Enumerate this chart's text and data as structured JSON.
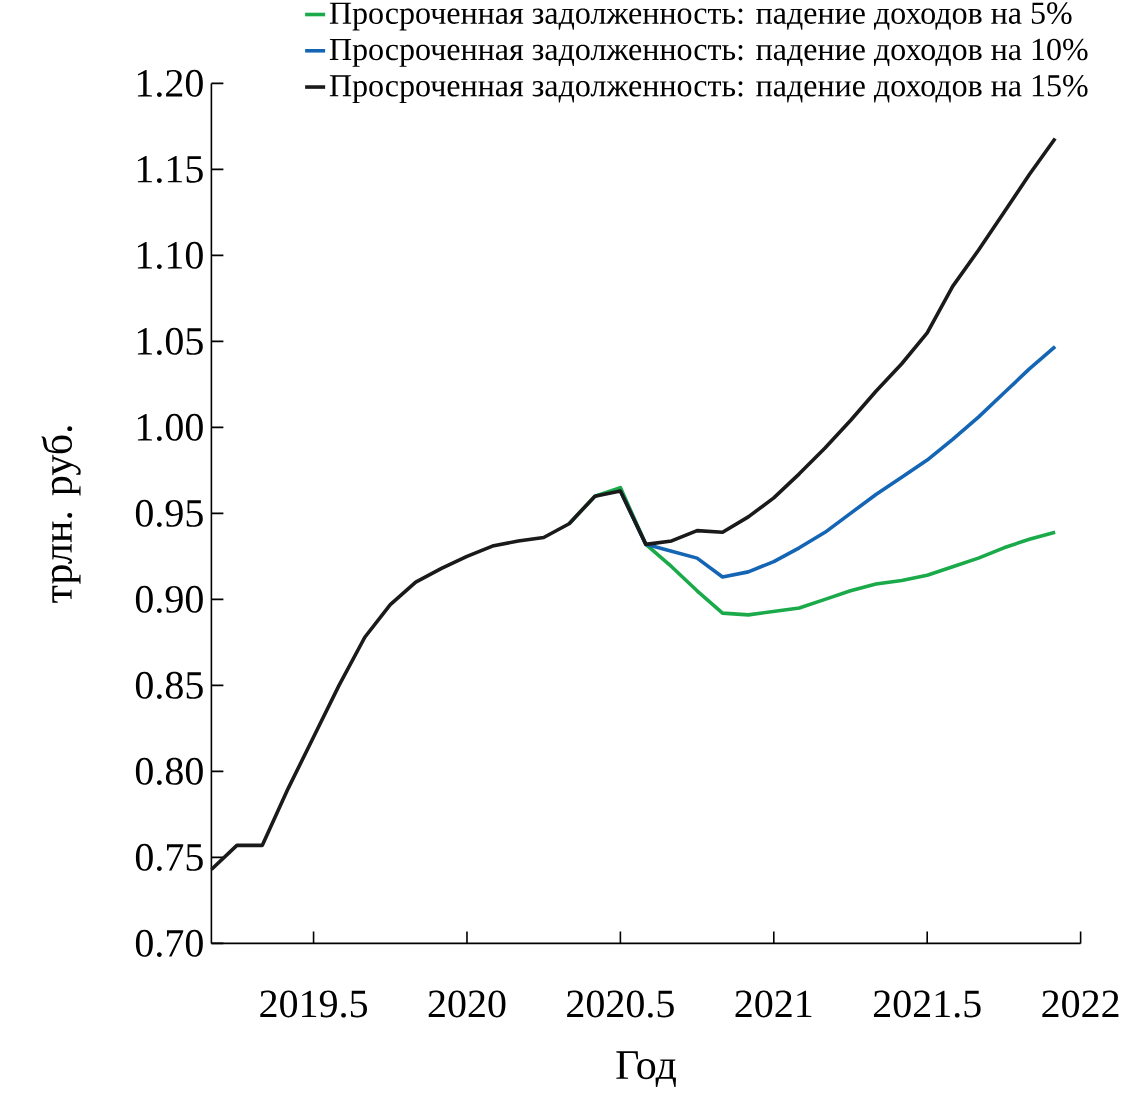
{
  "chart_data": {
    "type": "line",
    "xlabel": "Год",
    "ylabel": "трлн. руб.",
    "x": [
      2019.167,
      2019.25,
      2019.333,
      2019.417,
      2019.5,
      2019.583,
      2019.667,
      2019.75,
      2019.833,
      2019.917,
      2020,
      2020.083,
      2020.167,
      2020.25,
      2020.333,
      2020.417,
      2020.5,
      2020.583,
      2020.667,
      2020.75,
      2020.833,
      2020.917,
      2021,
      2021.083,
      2021.167,
      2021.25,
      2021.333,
      2021.417,
      2021.5,
      2021.583,
      2021.667,
      2021.75,
      2021.833,
      2021.917
    ],
    "series": [
      {
        "name": "Просроченная задолженность: падение доходов на 5%",
        "color": "#1aaa4a",
        "values": [
          null,
          null,
          null,
          null,
          null,
          null,
          null,
          null,
          null,
          null,
          null,
          null,
          null,
          null,
          0.944,
          0.96,
          0.965,
          0.932,
          0.919,
          0.905,
          0.892,
          0.891,
          0.893,
          0.895,
          0.9,
          0.905,
          0.909,
          0.911,
          0.914,
          0.919,
          0.924,
          0.93,
          0.935,
          0.939
        ]
      },
      {
        "name": "Просроченная задолженность: падение доходов на 10%",
        "color": "#1565b5",
        "values": [
          null,
          null,
          null,
          null,
          null,
          null,
          null,
          null,
          null,
          null,
          null,
          null,
          null,
          null,
          null,
          null,
          0.963,
          0.932,
          0.928,
          0.924,
          0.913,
          0.916,
          0.922,
          0.93,
          0.939,
          0.95,
          0.961,
          0.971,
          0.981,
          0.993,
          1.006,
          1.02,
          1.034,
          1.047
        ]
      },
      {
        "name": "Просроченная задолженность: падение доходов на 15%",
        "color": "#1a1a1a",
        "values": [
          0.743,
          0.757,
          0.757,
          0.79,
          0.82,
          0.85,
          0.878,
          0.897,
          0.91,
          0.918,
          0.925,
          0.931,
          0.934,
          0.936,
          0.944,
          0.96,
          0.963,
          0.932,
          0.934,
          0.94,
          0.939,
          0.948,
          0.959,
          0.973,
          0.988,
          1.004,
          1.021,
          1.037,
          1.055,
          1.082,
          1.103,
          1.125,
          1.147,
          1.168
        ]
      }
    ],
    "xlim": [
      2019.167,
      2022
    ],
    "ylim": [
      0.7,
      1.2
    ],
    "xticks": [
      2019.5,
      2020,
      2020.5,
      2021,
      2021.5,
      2022
    ],
    "yticks": [
      {
        "value": 0.7,
        "label": "0.70"
      },
      {
        "value": 0.75,
        "label": "0.75"
      },
      {
        "value": 0.8,
        "label": "0.80"
      },
      {
        "value": 0.85,
        "label": "0.85"
      },
      {
        "value": 0.9,
        "label": "0.90"
      },
      {
        "value": 0.95,
        "label": "0.95"
      },
      {
        "value": 1.0,
        "label": "1.00"
      },
      {
        "value": 1.05,
        "label": "1.05"
      },
      {
        "value": 1.1,
        "label": "1.10"
      },
      {
        "value": 1.15,
        "label": "1.15"
      },
      {
        "value": 1.2,
        "label": "1.20"
      }
    ],
    "legend": "top right"
  }
}
